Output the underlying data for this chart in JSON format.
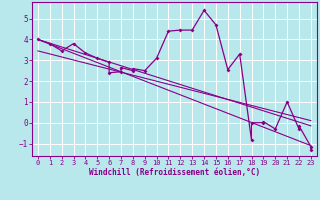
{
  "xlabel": "Windchill (Refroidissement éolien,°C)",
  "bg_color": "#b8e8ec",
  "grid_color": "#ffffff",
  "line_color": "#880088",
  "xlim": [
    -0.5,
    23.5
  ],
  "ylim": [
    -1.6,
    5.8
  ],
  "yticks": [
    -1,
    0,
    1,
    2,
    3,
    4,
    5
  ],
  "xticks": [
    0,
    1,
    2,
    3,
    4,
    5,
    6,
    7,
    8,
    9,
    10,
    11,
    12,
    13,
    14,
    15,
    16,
    17,
    18,
    19,
    20,
    21,
    22,
    23
  ],
  "series": [
    [
      0,
      4.0
    ],
    [
      1,
      3.8
    ],
    [
      2,
      3.45
    ],
    [
      3,
      3.8
    ],
    [
      4,
      3.35
    ],
    [
      5,
      3.1
    ],
    [
      6,
      2.9
    ],
    [
      6,
      2.4
    ],
    [
      7,
      2.45
    ],
    [
      7,
      2.65
    ],
    [
      8,
      2.5
    ],
    [
      8,
      2.6
    ],
    [
      9,
      2.5
    ],
    [
      10,
      3.1
    ],
    [
      11,
      4.4
    ],
    [
      12,
      4.45
    ],
    [
      13,
      4.45
    ],
    [
      14,
      5.4
    ],
    [
      15,
      4.7
    ],
    [
      16,
      2.55
    ],
    [
      17,
      3.3
    ],
    [
      18,
      -0.85
    ],
    [
      18,
      0.0
    ],
    [
      19,
      0.0
    ],
    [
      19,
      0.05
    ],
    [
      20,
      -0.3
    ],
    [
      21,
      1.0
    ],
    [
      22,
      -0.3
    ],
    [
      22,
      -0.15
    ],
    [
      23,
      -1.15
    ],
    [
      23,
      -1.3
    ]
  ],
  "trend_lines": [
    {
      "x": [
        0,
        23
      ],
      "y": [
        4.0,
        -0.15
      ]
    },
    {
      "x": [
        0,
        23
      ],
      "y": [
        4.0,
        -1.1
      ]
    },
    {
      "x": [
        0,
        23
      ],
      "y": [
        3.45,
        0.1
      ]
    }
  ]
}
